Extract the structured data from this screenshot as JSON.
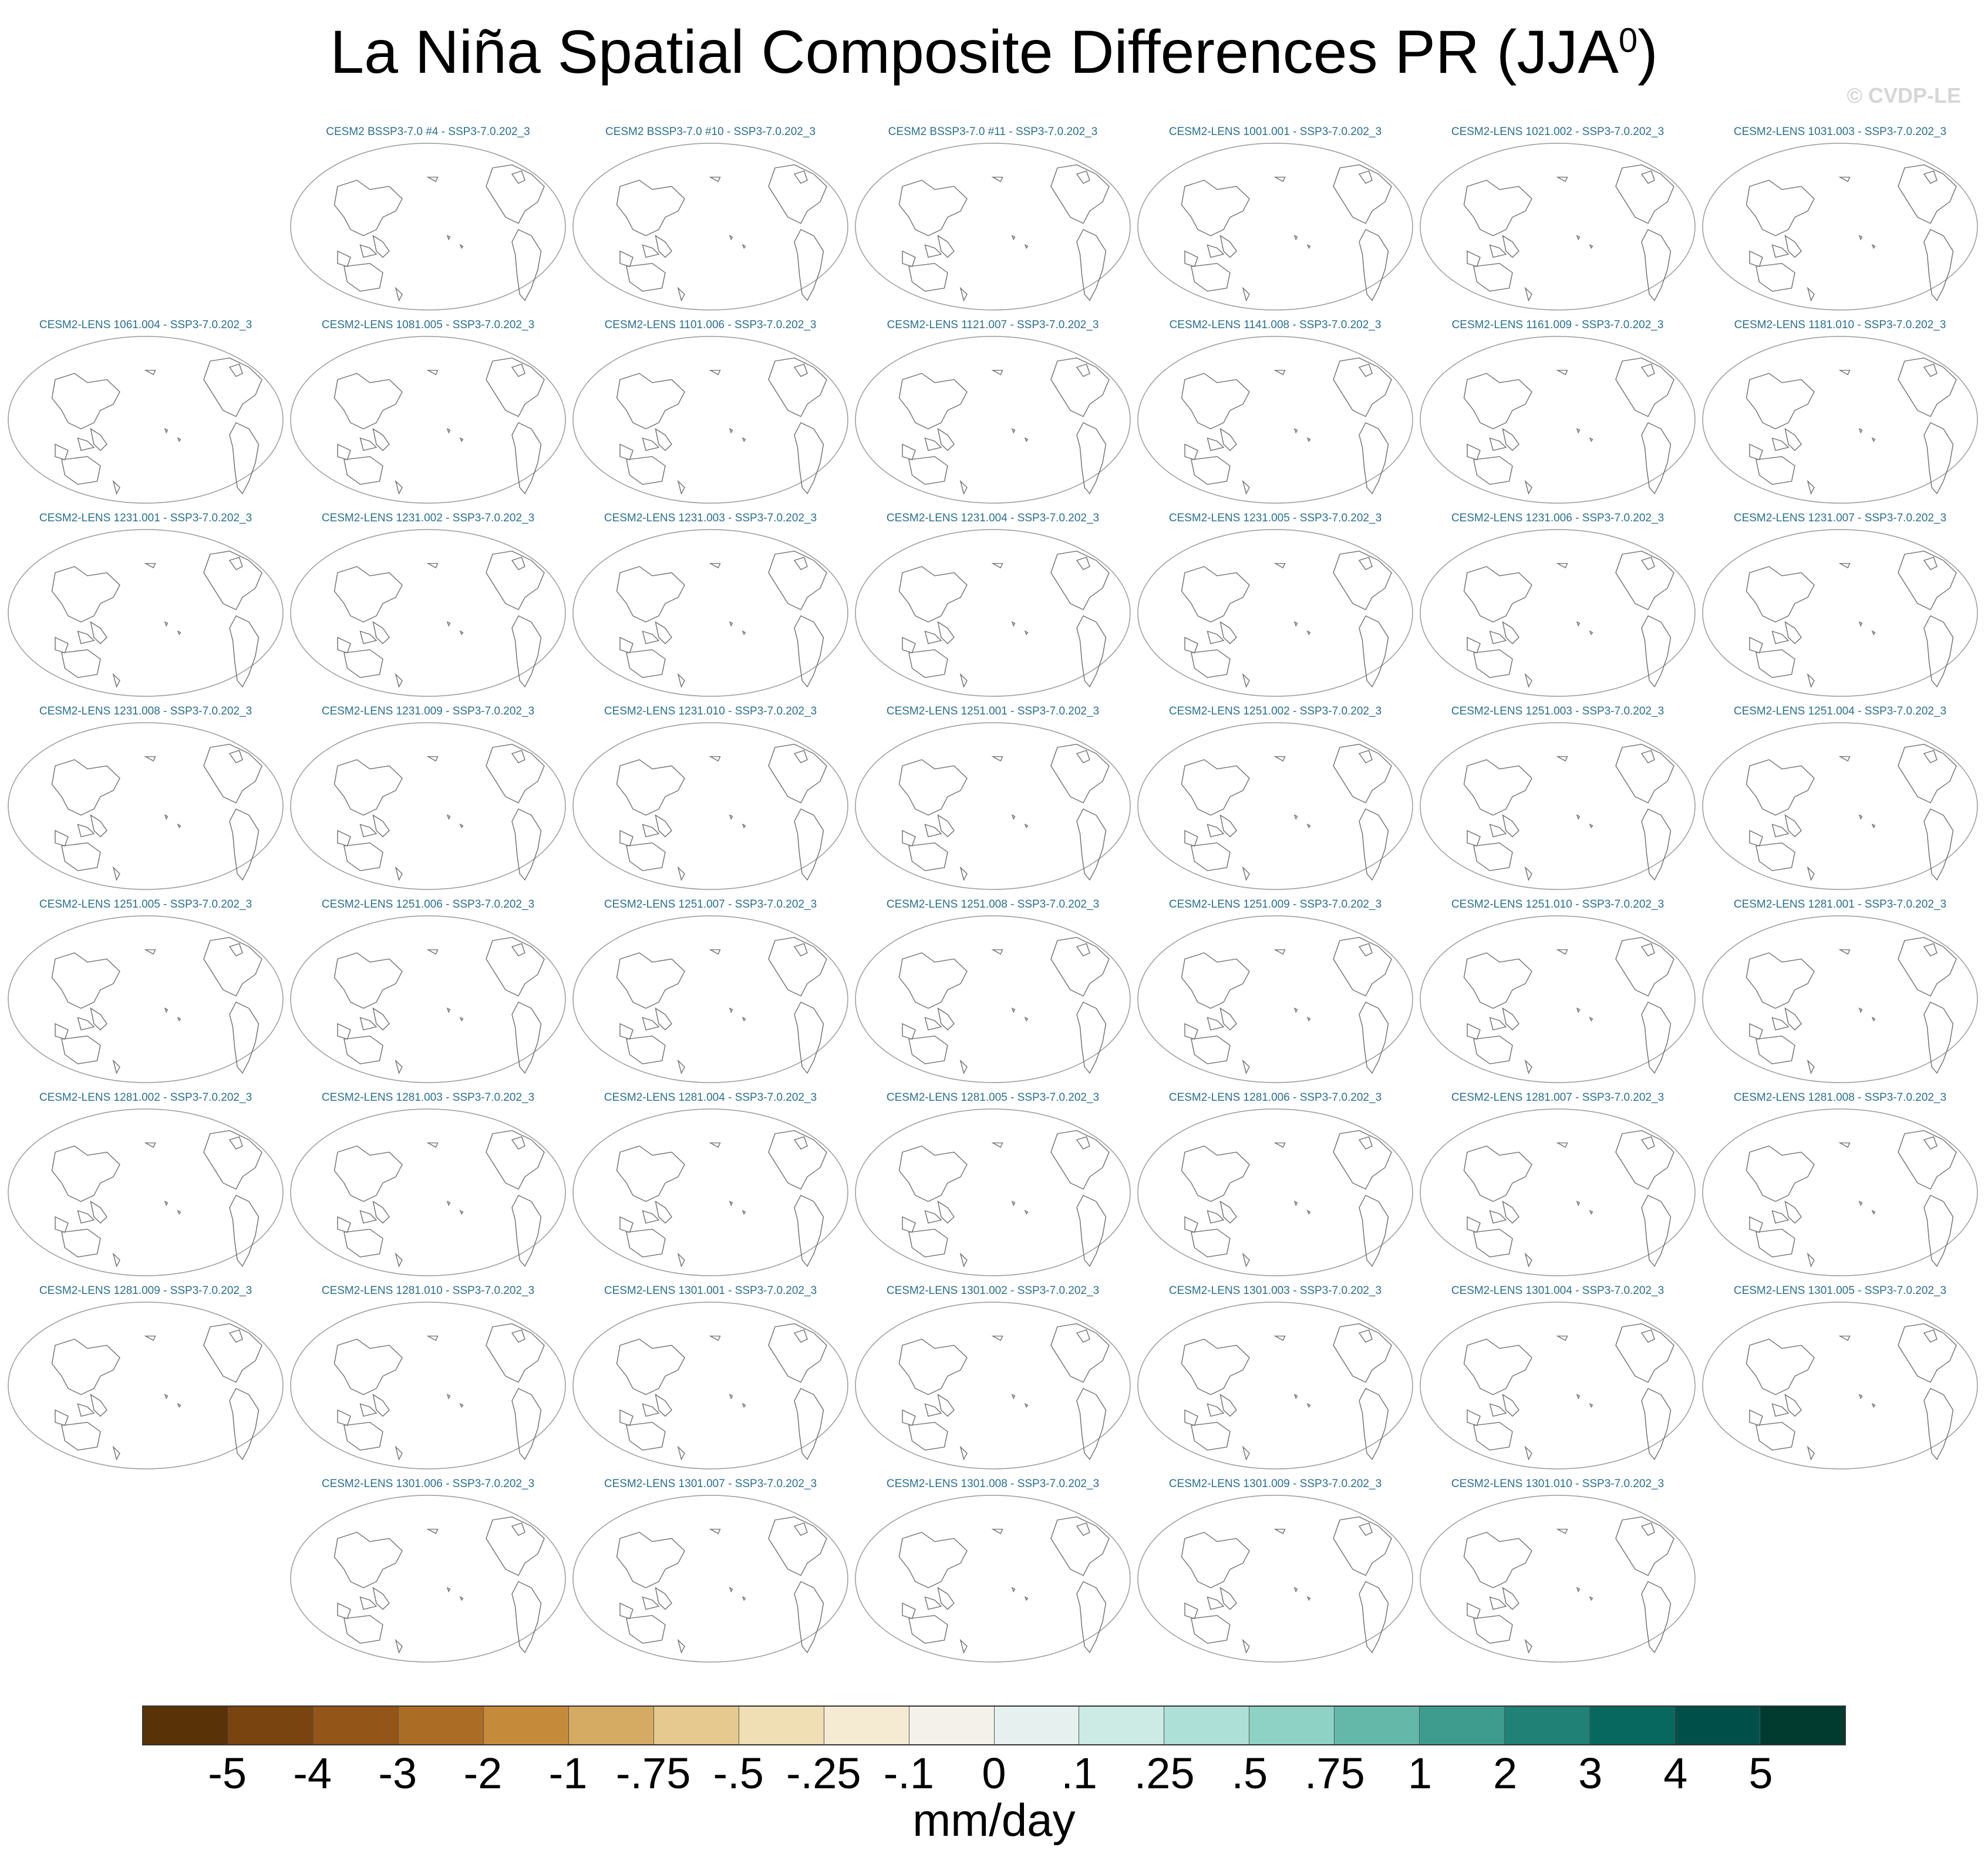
{
  "title": {
    "main": "La Niña Spatial Composite Differences PR (JJA",
    "superscript": "0",
    "close": ")"
  },
  "watermark": "© CVDP-LE",
  "chart_data": {
    "type": "map-panel-grid",
    "projection": "Robinson (Pacific-centered)",
    "rows": [
      [
        "",
        "CESM2 BSSP3-7.0 #4 - SSP3-7.0.202_3",
        "CESM2 BSSP3-7.0 #10 - SSP3-7.0.202_3",
        "CESM2 BSSP3-7.0 #11 - SSP3-7.0.202_3",
        "CESM2-LENS 1001.001 - SSP3-7.0.202_3",
        "CESM2-LENS 1021.002 - SSP3-7.0.202_3",
        "CESM2-LENS 1031.003 - SSP3-7.0.202_3"
      ],
      [
        "CESM2-LENS 1061.004 - SSP3-7.0.202_3",
        "CESM2-LENS 1081.005 - SSP3-7.0.202_3",
        "CESM2-LENS 1101.006 - SSP3-7.0.202_3",
        "CESM2-LENS 1121.007 - SSP3-7.0.202_3",
        "CESM2-LENS 1141.008 - SSP3-7.0.202_3",
        "CESM2-LENS 1161.009 - SSP3-7.0.202_3",
        "CESM2-LENS 1181.010 - SSP3-7.0.202_3"
      ],
      [
        "CESM2-LENS 1231.001 - SSP3-7.0.202_3",
        "CESM2-LENS 1231.002 - SSP3-7.0.202_3",
        "CESM2-LENS 1231.003 - SSP3-7.0.202_3",
        "CESM2-LENS 1231.004 - SSP3-7.0.202_3",
        "CESM2-LENS 1231.005 - SSP3-7.0.202_3",
        "CESM2-LENS 1231.006 - SSP3-7.0.202_3",
        "CESM2-LENS 1231.007 - SSP3-7.0.202_3"
      ],
      [
        "CESM2-LENS 1231.008 - SSP3-7.0.202_3",
        "CESM2-LENS 1231.009 - SSP3-7.0.202_3",
        "CESM2-LENS 1231.010 - SSP3-7.0.202_3",
        "CESM2-LENS 1251.001 - SSP3-7.0.202_3",
        "CESM2-LENS 1251.002 - SSP3-7.0.202_3",
        "CESM2-LENS 1251.003 - SSP3-7.0.202_3",
        "CESM2-LENS 1251.004 - SSP3-7.0.202_3"
      ],
      [
        "CESM2-LENS 1251.005 - SSP3-7.0.202_3",
        "CESM2-LENS 1251.006 - SSP3-7.0.202_3",
        "CESM2-LENS 1251.007 - SSP3-7.0.202_3",
        "CESM2-LENS 1251.008 - SSP3-7.0.202_3",
        "CESM2-LENS 1251.009 - SSP3-7.0.202_3",
        "CESM2-LENS 1251.010 - SSP3-7.0.202_3",
        "CESM2-LENS 1281.001 - SSP3-7.0.202_3"
      ],
      [
        "CESM2-LENS 1281.002 - SSP3-7.0.202_3",
        "CESM2-LENS 1281.003 - SSP3-7.0.202_3",
        "CESM2-LENS 1281.004 - SSP3-7.0.202_3",
        "CESM2-LENS 1281.005 - SSP3-7.0.202_3",
        "CESM2-LENS 1281.006 - SSP3-7.0.202_3",
        "CESM2-LENS 1281.007 - SSP3-7.0.202_3",
        "CESM2-LENS 1281.008 - SSP3-7.0.202_3"
      ],
      [
        "CESM2-LENS 1281.009 - SSP3-7.0.202_3",
        "CESM2-LENS 1281.010 - SSP3-7.0.202_3",
        "CESM2-LENS 1301.001 - SSP3-7.0.202_3",
        "CESM2-LENS 1301.002 - SSP3-7.0.202_3",
        "CESM2-LENS 1301.003 - SSP3-7.0.202_3",
        "CESM2-LENS 1301.004 - SSP3-7.0.202_3",
        "CESM2-LENS 1301.005 - SSP3-7.0.202_3"
      ],
      [
        "",
        "CESM2-LENS 1301.006 - SSP3-7.0.202_3",
        "CESM2-LENS 1301.007 - SSP3-7.0.202_3",
        "CESM2-LENS 1301.008 - SSP3-7.0.202_3",
        "CESM2-LENS 1301.009 - SSP3-7.0.202_3",
        "CESM2-LENS 1301.010 - SSP3-7.0.202_3",
        ""
      ]
    ],
    "colorbar": {
      "labels": [
        "-5",
        "-4",
        "-3",
        "-2",
        "-1",
        "-.75",
        "-.5",
        "-.25",
        "-.1",
        "0",
        ".1",
        ".25",
        ".5",
        ".75",
        "1",
        "2",
        "3",
        "4",
        "5"
      ],
      "colors": [
        "#5a3208",
        "#7a4410",
        "#935518",
        "#ab6d25",
        "#c68b3a",
        "#d5aa63",
        "#e5c98f",
        "#f0deb4",
        "#f5ebd3",
        "#f4f1eb",
        "#e6f1ef",
        "#cbebe4",
        "#ade0d7",
        "#8dd2c4",
        "#63b8aa",
        "#3d9c8e",
        "#208276",
        "#076860",
        "#00504a",
        "#013a2f"
      ],
      "units": "mm/day"
    }
  }
}
